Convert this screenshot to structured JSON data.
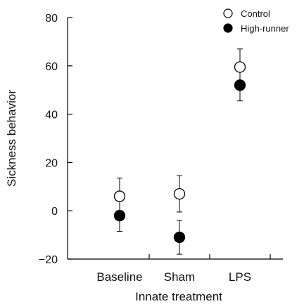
{
  "chart_data": {
    "type": "scatter",
    "xlabel": "Innate treatment",
    "ylabel": "Sickness behavior",
    "categories": [
      "Baseline",
      "Sham",
      "LPS"
    ],
    "ylim": [
      -20,
      80
    ],
    "yticks": [
      -20,
      0,
      20,
      40,
      60,
      80
    ],
    "ytick_labels": [
      "−20",
      "0",
      "20",
      "40",
      "60",
      "80"
    ],
    "legend_position": "top-right",
    "grid": false,
    "series": [
      {
        "name": "Control",
        "marker": "open-circle",
        "color": "#000000",
        "values": [
          6,
          7,
          59.5
        ],
        "errors": [
          7.5,
          7.5,
          7.5
        ]
      },
      {
        "name": "High-runner",
        "marker": "filled-circle",
        "color": "#000000",
        "values": [
          -2,
          -11,
          52
        ],
        "errors": [
          6.5,
          7,
          6.5
        ]
      }
    ]
  }
}
